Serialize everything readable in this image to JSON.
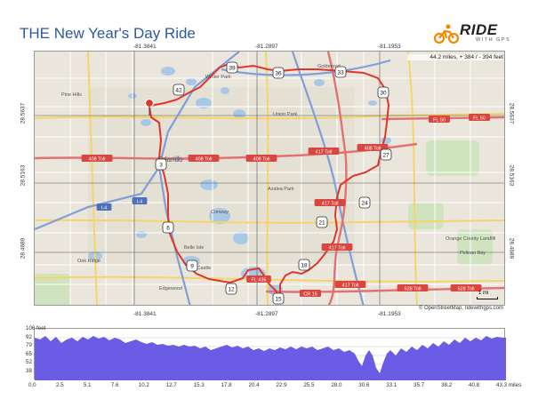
{
  "title": "THE New Year's Day Ride",
  "logo": {
    "word": "RIDE",
    "sub": "WITH GPS",
    "icon": "cyclist-icon",
    "accent": "#f08a00"
  },
  "stats": {
    "line": "44.2 miles, + 384 / - 394 feet"
  },
  "attribution": "© OpenStreetMap, ridewithgps.com",
  "scale_label": "1 mi",
  "coords": {
    "top": [
      "-81.3841",
      "-81.2897",
      "-81.1953"
    ],
    "bottom": [
      "-81.3841",
      "-81.2897",
      "-81.1953"
    ],
    "left": [
      "28.5637",
      "28.5163",
      "28.4689"
    ],
    "right": [
      "28.5637",
      "28.5163",
      "28.4689"
    ]
  },
  "map": {
    "route_color": "#e0352b",
    "road_labels": [
      "408 Toll",
      "408 Toll",
      "408 Toll",
      "408 Toll",
      "417 Toll",
      "417 Toll",
      "417 Toll",
      "417 Toll",
      "FL 50",
      "FL 50",
      "528 Toll",
      "528 Toll",
      "FL 436",
      "CR 15",
      "I-4",
      "I-4"
    ],
    "places": [
      "Orlando",
      "Winter Park",
      "Union Park",
      "Conway",
      "Belle Isle",
      "Oak Ridge",
      "Pine Castle",
      "Pine Hills",
      "Orange County Landfill",
      "Pelican Bay",
      "Edgewood",
      "Azalea Park",
      "Goldenrod"
    ],
    "waypoints": [
      "39",
      "36",
      "33",
      "30",
      "42",
      "3",
      "6",
      "9",
      "12",
      "15",
      "18",
      "21",
      "24",
      "27"
    ]
  },
  "elevation": {
    "fill": "#6b5ce6",
    "y_ticks": [
      "106 feet",
      "92",
      "79",
      "65",
      "52",
      "38"
    ],
    "x_ticks": [
      "0.0",
      "2.5",
      "5.1",
      "7.6",
      "10.2",
      "12.7",
      "15.3",
      "17.8",
      "20.4",
      "22.9",
      "25.5",
      "28.0",
      "30.6",
      "33.1",
      "35.7",
      "38.2",
      "40.8",
      "43.3 miles"
    ]
  }
}
